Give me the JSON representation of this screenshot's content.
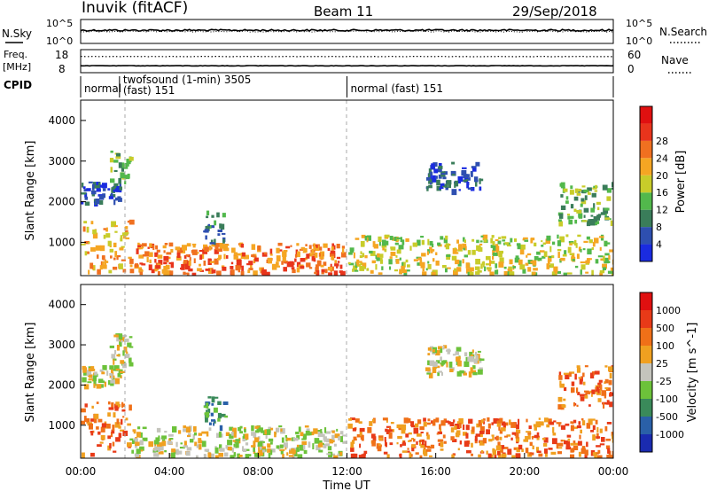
{
  "header": {
    "station": "Inuvik (fitACF)",
    "beam": "Beam 11",
    "date": "29/Sep/2018"
  },
  "noise_panel": {
    "left_label": "N.Sky",
    "right_label": "N.Search",
    "left_ticks": [
      "10^5",
      "10^0"
    ],
    "right_ticks": [
      "10^5",
      "10^0"
    ]
  },
  "freq_panel": {
    "left_label_1": "Freq.",
    "left_label_2": "[MHz]",
    "right_label": "Nave",
    "left_ticks": [
      "18",
      "8"
    ],
    "right_ticks": [
      "60",
      "0"
    ]
  },
  "cpid": {
    "label": "CPID",
    "segments": [
      {
        "start_hour": 0,
        "end_hour": 1.75,
        "text": "normal",
        "text2": ""
      },
      {
        "start_hour": 1.75,
        "end_hour": 12,
        "text": "twofsound (1-min) 3505",
        "text2": "(fast) 151"
      },
      {
        "start_hour": 12,
        "end_hour": 24,
        "text": "normal (fast) 151",
        "text2": ""
      }
    ]
  },
  "time_axis": {
    "label": "Time UT",
    "ticks": [
      "00:00",
      "04:00",
      "08:00",
      "12:00",
      "16:00",
      "20:00",
      "00:00"
    ]
  },
  "power_panel": {
    "ylabel": "Slant Range [km]",
    "yticks": [
      "1000",
      "2000",
      "3000",
      "4000"
    ],
    "colorbar_label": "Power [dB]",
    "colorbar_ticks": [
      "4",
      "8",
      "12",
      "16",
      "20",
      "24",
      "28"
    ],
    "colors": [
      "#1a2be0",
      "#2e4fb0",
      "#3a7d5a",
      "#52b84c",
      "#c8cc2a",
      "#f5a623",
      "#f07020",
      "#e8341c",
      "#e01010"
    ]
  },
  "velocity_panel": {
    "ylabel": "Slant Range [km]",
    "yticks": [
      "1000",
      "2000",
      "3000",
      "4000"
    ],
    "colorbar_label": "Velocity [m s^-1]",
    "colorbar_ticks": [
      "1000",
      "500",
      "100",
      "25",
      "-25",
      "-100",
      "-500",
      "-1000"
    ],
    "colors": [
      "#1a2bb0",
      "#2a60a8",
      "#3a8a5a",
      "#6cc23a",
      "#c4c4bc",
      "#f0a020",
      "#f07018",
      "#e83a18",
      "#e01010"
    ]
  },
  "chart_data": {
    "type": "heatmap",
    "x_range_hours": [
      0,
      24
    ],
    "y_range_km": [
      180,
      4500
    ],
    "noise_sky_level": 0.55,
    "noise_search_level": 0.5,
    "freq_level": 0.3,
    "nave_level": 0.7,
    "echo_regions": [
      {
        "t0": 0,
        "t1": 2.2,
        "r0": 300,
        "r1": 1600,
        "p_level": 5,
        "v_level": 6
      },
      {
        "t0": 0,
        "t1": 1.8,
        "r0": 2000,
        "r1": 2500,
        "p_level": 1,
        "v_level": 4
      },
      {
        "t0": 1.3,
        "t1": 2.2,
        "r0": 2500,
        "r1": 3300,
        "p_level": 3,
        "v_level": 4
      },
      {
        "t0": 2.2,
        "t1": 11.8,
        "r0": 250,
        "r1": 1000,
        "p_level": 6,
        "v_level": 4
      },
      {
        "t0": 5.5,
        "t1": 6.5,
        "r0": 1000,
        "r1": 1800,
        "p_level": 2,
        "v_level": 2
      },
      {
        "t0": 12,
        "t1": 24,
        "r0": 250,
        "r1": 1200,
        "p_level": 4,
        "v_level": 6
      },
      {
        "t0": 15.5,
        "t1": 18,
        "r0": 2300,
        "r1": 3000,
        "p_level": 1,
        "v_level": 4
      },
      {
        "t0": 21.5,
        "t1": 24,
        "r0": 1500,
        "r1": 2500,
        "p_level": 3,
        "v_level": 6
      }
    ]
  }
}
